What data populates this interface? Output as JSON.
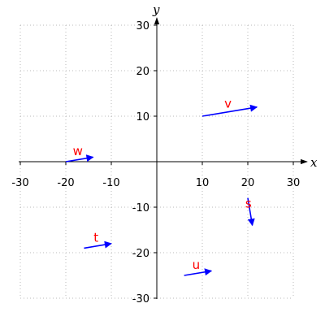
{
  "chart_data": {
    "type": "vector-plot",
    "xlabel": "x",
    "ylabel": "y",
    "xlim": [
      -30,
      30
    ],
    "ylim": [
      -30,
      30
    ],
    "xticks": [
      -30,
      -20,
      -10,
      10,
      20,
      30
    ],
    "yticks": [
      -30,
      -20,
      -10,
      10,
      20,
      30
    ],
    "grid": true,
    "vectors": [
      {
        "label": "v",
        "from": [
          10,
          10
        ],
        "to": [
          22,
          12
        ]
      },
      {
        "label": "w",
        "from": [
          -20,
          0
        ],
        "to": [
          -14,
          1
        ]
      },
      {
        "label": "s",
        "from": [
          20,
          -8
        ],
        "to": [
          21,
          -14
        ]
      },
      {
        "label": "t",
        "from": [
          -16,
          -19
        ],
        "to": [
          -10,
          -18
        ]
      },
      {
        "label": "u",
        "from": [
          6,
          -25
        ],
        "to": [
          12,
          -24
        ]
      }
    ]
  },
  "colors": {
    "vector": "#0000ff",
    "vector_label": "#ff0000",
    "grid": "#b8b8b8",
    "axis": "#000000"
  }
}
